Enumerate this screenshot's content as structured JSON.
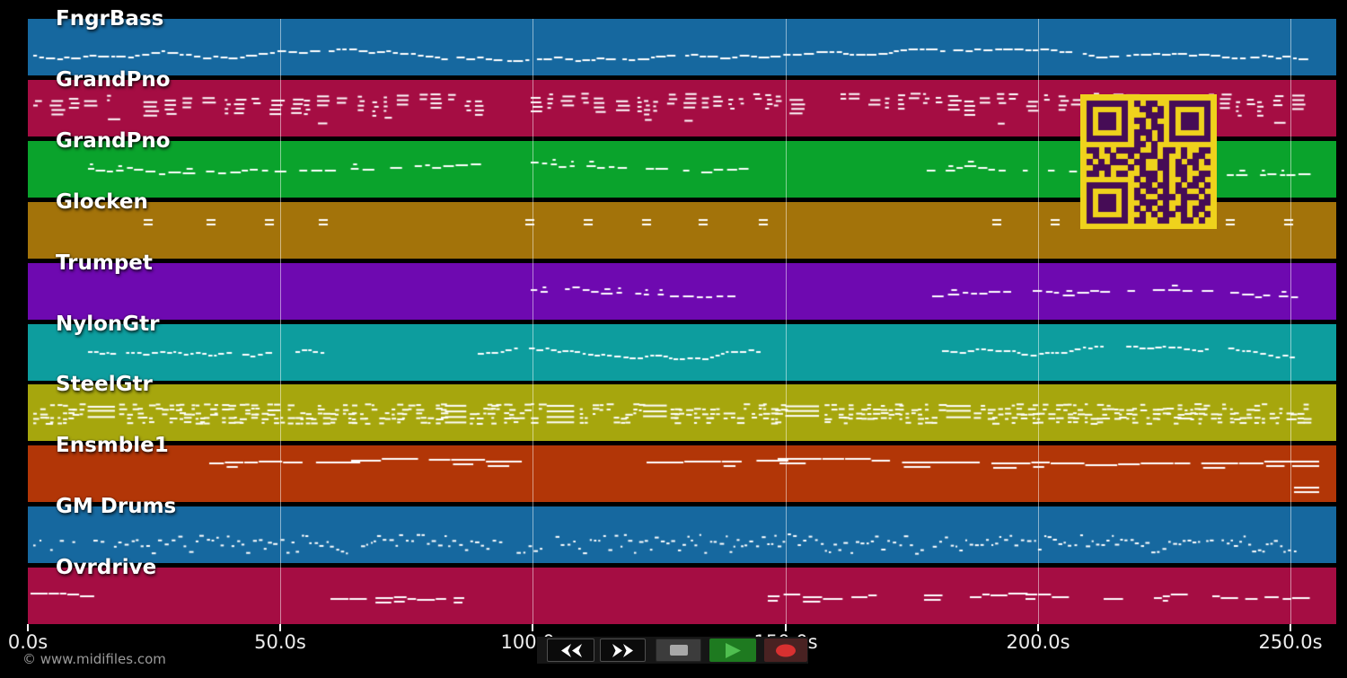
{
  "app": {
    "type": "midi-arrangement-view",
    "background": "#000000",
    "note_color": "#FFFFFF",
    "gridline_color": "rgba(255,255,255,0.5)"
  },
  "tracks": [
    {
      "name": "FngrBass",
      "color": "#16689F",
      "pattern": "bass",
      "segments": [
        [
          1,
          253
        ]
      ]
    },
    {
      "name": "GrandPno",
      "color": "#A50D43",
      "pattern": "chords",
      "segments": [
        [
          1,
          88.5
        ],
        [
          99.5,
          112.5
        ],
        [
          116.5,
          155
        ],
        [
          161,
          253
        ]
      ]
    },
    {
      "name": "GrandPno",
      "color": "#0AA32C",
      "pattern": "melody",
      "segments": [
        [
          12,
          88.5
        ],
        [
          99.5,
          142
        ],
        [
          178,
          197
        ],
        [
          202,
          252
        ]
      ]
    },
    {
      "name": "Glocken",
      "color": "#A3730A",
      "pattern": "hits",
      "hits": [
        22.9,
        35.4,
        46.9,
        57.6,
        98.5,
        110.1,
        121.6,
        132.8,
        144.7,
        191,
        202.5,
        237.2,
        248.8
      ]
    },
    {
      "name": "Trumpet",
      "color": "#6E09B0",
      "pattern": "melody",
      "segments": [
        [
          99.5,
          142
        ],
        [
          179,
          194
        ],
        [
          199,
          252
        ]
      ]
    },
    {
      "name": "NylonGtr",
      "color": "#0D9D9E",
      "pattern": "runs",
      "segments": [
        [
          12,
          48
        ],
        [
          53,
          58.5
        ],
        [
          89,
          145.5
        ],
        [
          181,
          250.5
        ]
      ]
    },
    {
      "name": "SteelGtr",
      "color": "#A6A60D",
      "pattern": "strum",
      "segments": [
        [
          1,
          253
        ]
      ]
    },
    {
      "name": "Ensmble1",
      "color": "#B23607",
      "pattern": "sustained",
      "segments": [
        [
          36,
          61
        ],
        [
          64,
          98.5
        ],
        [
          122.5,
          148
        ],
        [
          148.5,
          173.5
        ],
        [
          181,
          250
        ]
      ],
      "end_chords": [
        250.4
      ]
    },
    {
      "name": "GM Drums",
      "color": "#16689F",
      "pattern": "drums",
      "segments": [
        [
          1,
          10
        ],
        [
          13,
          251
        ]
      ]
    },
    {
      "name": "Ovrdrive",
      "color": "#A50D43",
      "pattern": "lead",
      "segments": [
        [
          0.5,
          13
        ],
        [
          60,
          85
        ],
        [
          146.5,
          167.5
        ],
        [
          177.5,
          180.5
        ],
        [
          186.5,
          194.5
        ],
        [
          197.5,
          204.5
        ],
        [
          213,
          217
        ],
        [
          223,
          227
        ],
        [
          234.5,
          251
        ]
      ]
    }
  ],
  "timeline": {
    "unit": "seconds",
    "ticks": [
      {
        "label": "0.0s",
        "seconds": 0
      },
      {
        "label": "50.0s",
        "seconds": 50
      },
      {
        "label": "100.0s",
        "seconds": 100
      },
      {
        "label": "150.0s",
        "seconds": 150
      },
      {
        "label": "200.0s",
        "seconds": 200
      },
      {
        "label": "250.0s",
        "seconds": 250
      }
    ]
  },
  "transport": {
    "buttons": [
      {
        "id": "rewind",
        "icon": "rewind-icon"
      },
      {
        "id": "fast-forward",
        "icon": "fast-forward-icon"
      },
      {
        "id": "stop",
        "icon": "stop-icon"
      },
      {
        "id": "play",
        "icon": "play-icon"
      },
      {
        "id": "record",
        "icon": "record-icon"
      }
    ],
    "colors": {
      "stop_bg": "#3C3C3C",
      "stop_glyph": "#A8A8A8",
      "play_bg": "#1E7A20",
      "play_glyph": "#4FBE4F",
      "record_bg": "#492222",
      "record_glyph": "#D83030",
      "arrow_glyph": "#FFFFFF"
    }
  },
  "qr_code": {
    "bg": "#EFD21C",
    "fg": "#460C56",
    "matrix": [
      "111111101011001111111",
      "100000100110101000001",
      "101110100011101011101",
      "101110101101001011101",
      "101110100101101011101",
      "100000101110101000001",
      "111111101010101111111",
      "000000001101000000000",
      "110101111001011010011",
      "010010010111010010110",
      "101011101100110101101",
      "011100010100110110100",
      "110101100111010110011",
      "000000001011010010110",
      "111111100110110101101",
      "100000101011010110010",
      "101110101100111011101",
      "101110100111010010011",
      "101110101010110110110",
      "100000100101011010101",
      "111111101100110011010"
    ]
  },
  "footer": {
    "copyright": "© www.midifiles.com"
  }
}
